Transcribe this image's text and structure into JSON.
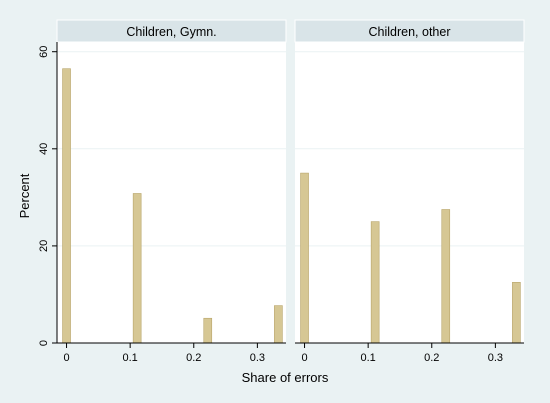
{
  "chart_data": {
    "type": "bar",
    "ylabel": "Percent",
    "xlabel": "Share of errors",
    "ylim": [
      0,
      62
    ],
    "xlim": [
      -0.015,
      0.345
    ],
    "yticks": [
      0,
      20,
      40,
      60
    ],
    "xticks": [
      0,
      0.1,
      0.2,
      0.3
    ],
    "ytick_labels": [
      "0",
      "20",
      "40",
      "60"
    ],
    "xtick_labels": [
      "0",
      "0.1",
      "0.2",
      "0.3"
    ],
    "grid": true,
    "bar_color": "#d6c794",
    "bar_edge_color": "#b8a56a",
    "panels": [
      {
        "label": "Children, Gymn.",
        "x": [
          0,
          0.111,
          0.222,
          0.333
        ],
        "values": [
          56.5,
          30.8,
          5.1,
          7.7
        ]
      },
      {
        "label": "Children, other",
        "x": [
          0,
          0.111,
          0.222,
          0.333
        ],
        "values": [
          35.0,
          25.0,
          27.5,
          12.5
        ]
      }
    ]
  }
}
